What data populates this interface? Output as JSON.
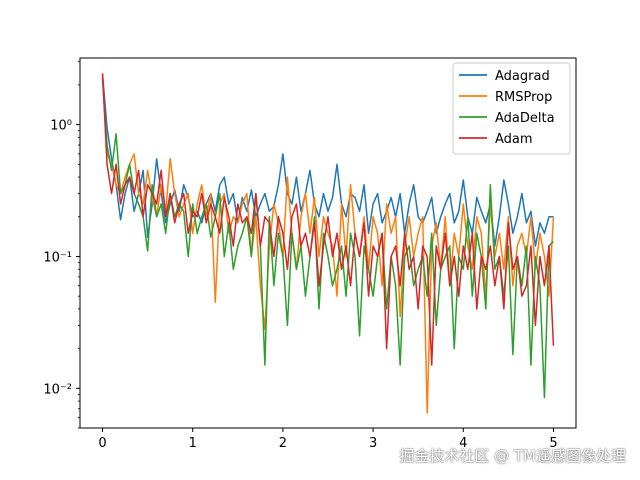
{
  "chart_data": {
    "type": "line",
    "title": "",
    "xlabel": "",
    "ylabel": "",
    "xscale": "linear",
    "yscale": "log",
    "xlim": [
      -0.25,
      5.25
    ],
    "ylim": [
      0.005,
      3.2
    ],
    "x_ticks": [
      0,
      1,
      2,
      3,
      4,
      5
    ],
    "x_tick_labels": [
      "0",
      "1",
      "2",
      "3",
      "4",
      "5"
    ],
    "y_ticks": [
      0.01,
      0.1,
      1
    ],
    "y_tick_labels": [
      "10⁻²",
      "10⁻¹",
      "10⁰"
    ],
    "grid": false,
    "legend_position": "top-right",
    "x": [
      0.0,
      0.05,
      0.1,
      0.15,
      0.2,
      0.25,
      0.3,
      0.35,
      0.4,
      0.45,
      0.5,
      0.55,
      0.6,
      0.65,
      0.7,
      0.75,
      0.8,
      0.85,
      0.9,
      0.95,
      1.0,
      1.05,
      1.1,
      1.15,
      1.2,
      1.25,
      1.3,
      1.35,
      1.4,
      1.45,
      1.5,
      1.55,
      1.6,
      1.65,
      1.7,
      1.75,
      1.8,
      1.85,
      1.9,
      1.95,
      2.0,
      2.05,
      2.1,
      2.15,
      2.2,
      2.25,
      2.3,
      2.35,
      2.4,
      2.45,
      2.5,
      2.55,
      2.6,
      2.65,
      2.7,
      2.75,
      2.8,
      2.85,
      2.9,
      2.95,
      3.0,
      3.05,
      3.1,
      3.15,
      3.2,
      3.25,
      3.3,
      3.35,
      3.4,
      3.45,
      3.5,
      3.55,
      3.6,
      3.65,
      3.7,
      3.75,
      3.8,
      3.85,
      3.9,
      3.95,
      4.0,
      4.05,
      4.1,
      4.15,
      4.2,
      4.25,
      4.3,
      4.35,
      4.4,
      4.45,
      4.5,
      4.55,
      4.6,
      4.65,
      4.7,
      4.75,
      4.8,
      4.85,
      4.9,
      4.95,
      5.0
    ],
    "series": [
      {
        "name": "Adagrad",
        "color": "#1f77b4",
        "values": [
          2.4,
          0.95,
          0.55,
          0.35,
          0.19,
          0.3,
          0.4,
          0.22,
          0.3,
          0.45,
          0.14,
          0.25,
          0.55,
          0.3,
          0.18,
          0.25,
          0.32,
          0.22,
          0.35,
          0.28,
          0.2,
          0.22,
          0.18,
          0.25,
          0.3,
          0.22,
          0.35,
          0.4,
          0.25,
          0.3,
          0.18,
          0.28,
          0.22,
          0.32,
          0.2,
          0.25,
          0.3,
          0.22,
          0.24,
          0.35,
          0.6,
          0.3,
          0.25,
          0.4,
          0.22,
          0.3,
          0.45,
          0.25,
          0.2,
          0.3,
          0.22,
          0.28,
          0.5,
          0.25,
          0.2,
          0.3,
          0.28,
          0.22,
          0.35,
          0.15,
          0.25,
          0.3,
          0.18,
          0.22,
          0.28,
          0.2,
          0.3,
          0.15,
          0.25,
          0.35,
          0.2,
          0.18,
          0.22,
          0.28,
          0.15,
          0.2,
          0.25,
          0.3,
          0.18,
          0.22,
          0.38,
          0.2,
          0.15,
          0.28,
          0.22,
          0.18,
          0.25,
          0.12,
          0.2,
          0.38,
          0.25,
          0.15,
          0.2,
          0.3,
          0.18,
          0.22,
          0.12,
          0.18,
          0.15,
          0.2,
          0.2
        ]
      },
      {
        "name": "RMSProp",
        "color": "#ff7f0e",
        "values": [
          2.3,
          0.6,
          0.5,
          0.35,
          0.3,
          0.4,
          0.5,
          0.6,
          0.3,
          0.25,
          0.45,
          0.28,
          0.2,
          0.35,
          0.22,
          0.55,
          0.3,
          0.2,
          0.25,
          0.3,
          0.15,
          0.25,
          0.35,
          0.2,
          0.3,
          0.045,
          0.25,
          0.3,
          0.15,
          0.2,
          0.18,
          0.25,
          0.3,
          0.1,
          0.2,
          0.06,
          0.028,
          0.12,
          0.25,
          0.18,
          0.1,
          0.4,
          0.15,
          0.08,
          0.2,
          0.3,
          0.15,
          0.28,
          0.1,
          0.2,
          0.15,
          0.12,
          0.05,
          0.25,
          0.1,
          0.35,
          0.15,
          0.1,
          0.2,
          0.08,
          0.2,
          0.15,
          0.06,
          0.25,
          0.15,
          0.2,
          0.035,
          0.12,
          0.2,
          0.1,
          0.15,
          0.2,
          0.0065,
          0.12,
          0.18,
          0.08,
          0.2,
          0.06,
          0.15,
          0.1,
          0.25,
          0.12,
          0.08,
          0.2,
          0.15,
          0.05,
          0.25,
          0.1,
          0.15,
          0.08,
          0.2,
          0.06,
          0.12,
          0.15,
          0.1,
          0.2,
          0.08,
          0.15,
          0.1,
          0.05,
          0.2
        ]
      },
      {
        "name": "AdaDelta",
        "color": "#2ca02c",
        "values": [
          2.2,
          0.7,
          0.45,
          0.85,
          0.3,
          0.35,
          0.5,
          0.3,
          0.25,
          0.2,
          0.11,
          0.35,
          0.2,
          0.25,
          0.15,
          0.3,
          0.2,
          0.25,
          0.22,
          0.1,
          0.25,
          0.15,
          0.2,
          0.25,
          0.14,
          0.2,
          0.3,
          0.1,
          0.18,
          0.08,
          0.12,
          0.15,
          0.2,
          0.1,
          0.3,
          0.12,
          0.015,
          0.2,
          0.06,
          0.15,
          0.1,
          0.03,
          0.15,
          0.08,
          0.12,
          0.05,
          0.1,
          0.2,
          0.04,
          0.15,
          0.1,
          0.06,
          0.08,
          0.12,
          0.05,
          0.15,
          0.1,
          0.025,
          0.12,
          0.08,
          0.05,
          0.1,
          0.15,
          0.04,
          0.1,
          0.06,
          0.015,
          0.1,
          0.12,
          0.06,
          0.08,
          0.1,
          0.05,
          0.15,
          0.03,
          0.08,
          0.1,
          0.12,
          0.02,
          0.1,
          0.08,
          0.2,
          0.05,
          0.15,
          0.1,
          0.04,
          0.35,
          0.08,
          0.1,
          0.05,
          0.12,
          0.018,
          0.1,
          0.06,
          0.12,
          0.015,
          0.1,
          0.06,
          0.0085,
          0.12,
          0.13
        ]
      },
      {
        "name": "Adam",
        "color": "#d62728",
        "values": [
          2.45,
          0.5,
          0.3,
          0.5,
          0.25,
          0.35,
          0.4,
          0.3,
          0.45,
          0.2,
          0.35,
          0.3,
          0.25,
          0.45,
          0.2,
          0.3,
          0.18,
          0.25,
          0.3,
          0.15,
          0.22,
          0.2,
          0.3,
          0.18,
          0.25,
          0.2,
          0.15,
          0.28,
          0.2,
          0.12,
          0.25,
          0.18,
          0.2,
          0.15,
          0.3,
          0.12,
          0.2,
          0.18,
          0.1,
          0.2,
          0.15,
          0.08,
          0.2,
          0.25,
          0.12,
          0.15,
          0.1,
          0.18,
          0.06,
          0.12,
          0.2,
          0.1,
          0.15,
          0.08,
          0.12,
          0.06,
          0.15,
          0.1,
          0.18,
          0.05,
          0.12,
          0.1,
          0.15,
          0.02,
          0.1,
          0.12,
          0.06,
          0.15,
          0.08,
          0.1,
          0.04,
          0.12,
          0.1,
          0.015,
          0.12,
          0.08,
          0.15,
          0.06,
          0.1,
          0.05,
          0.12,
          0.08,
          0.15,
          0.04,
          0.1,
          0.08,
          0.12,
          0.06,
          0.1,
          0.04,
          0.18,
          0.08,
          0.1,
          0.05,
          0.06,
          0.12,
          0.03,
          0.1,
          0.06,
          0.12,
          0.021
        ]
      }
    ]
  },
  "watermark": "掘金技术社区 @ TM遥感图像处理"
}
